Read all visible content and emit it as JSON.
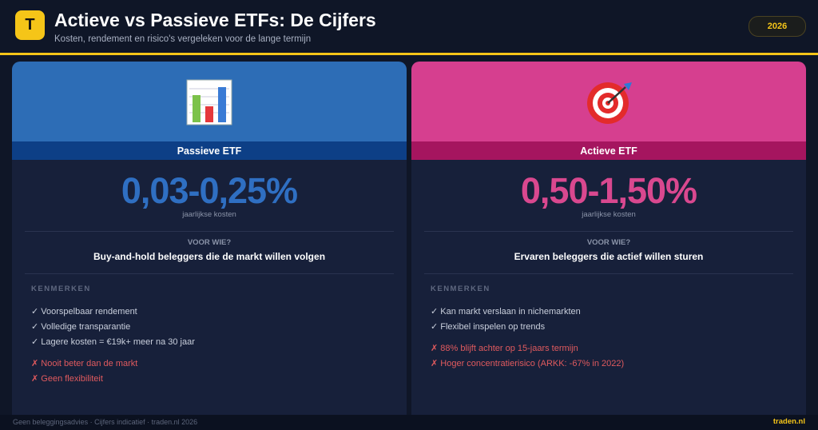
{
  "header": {
    "logo": "T",
    "title": "Actieve vs Passieve ETFs: De Cijfers",
    "subtitle": "Kosten, rendement en risico's vergeleken voor de lange termijn",
    "badge": "2026"
  },
  "cards": [
    {
      "label": "Passieve ETF",
      "cost": "0,03-0,25%",
      "cost_label": "jaarlijkse kosten",
      "audience_heading": "VOOR WIE?",
      "audience": "Buy-and-hold beleggers die de markt willen volgen",
      "features_heading": "KENMERKEN",
      "pros": [
        "✓ Voorspelbaar rendement",
        "✓ Volledige transparantie",
        "✓ Lagere kosten = €19k+ meer na 30 jaar"
      ],
      "cons": [
        "✗ Nooit beter dan de markt",
        "✗ Geen flexibiliteit"
      ]
    },
    {
      "label": "Actieve ETF",
      "cost": "0,50-1,50%",
      "cost_label": "jaarlijkse kosten",
      "audience_heading": "VOOR WIE?",
      "audience": "Ervaren beleggers die actief willen sturen",
      "features_heading": "KENMERKEN",
      "pros": [
        "✓ Kan markt verslaan in nichemarkten",
        "✓ Flexibel inspelen op trends"
      ],
      "cons": [
        "✗ 88% blijft achter op 15-jaars termijn",
        "✗ Hoger concentratierisico (ARKK: -67% in 2022)"
      ]
    }
  ],
  "footer": {
    "disclaimer": "Geen beleggingsadvies · Cijfers indicatief · traden.nl 2026",
    "site": "traden.nl"
  }
}
